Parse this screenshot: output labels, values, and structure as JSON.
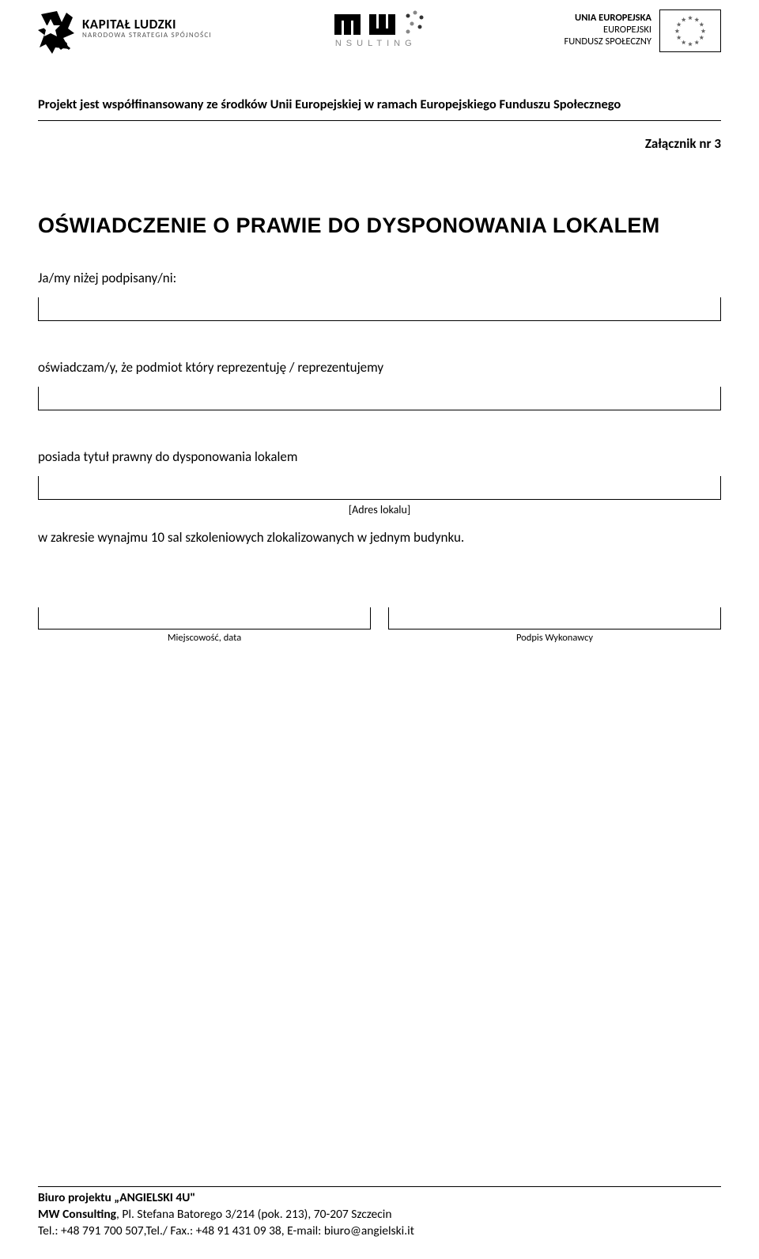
{
  "logos": {
    "kapital_title": "KAPITAŁ LUDZKI",
    "kapital_sub": "NARODOWA STRATEGIA SPÓJNOŚCI",
    "mw_letters": "mw",
    "mw_sub": "consulting",
    "eu_line1": "UNIA EUROPEJSKA",
    "eu_line2": "EUROPEJSKI",
    "eu_line3": "FUNDUSZ SPOŁECZNY",
    "eu_star_color": "#666666",
    "eu_flag_border": "#000000",
    "kapital_mark_bg": "#000000",
    "kapital_mark_star": "#ffffff"
  },
  "funding_line": "Projekt jest współfinansowany ze środków Unii Europejskiej w ramach Europejskiego Funduszu Społecznego",
  "attachment": "Załącznik nr 3",
  "title": "OŚWIADCZENIE O PRAWIE DO DYSPONOWANIA LOKALEM",
  "para1": "Ja/my niżej podpisany/ni:",
  "para2": "oświadczam/y, że podmiot który reprezentuję / reprezentujemy",
  "para3": "posiada tytuł prawny do dysponowania lokalem",
  "address_caption": "[Adres lokalu]",
  "scope": "w zakresie wynajmu 10 sal szkoleniowych zlokalizowanych w jednym budynku.",
  "sig_left": "Miejscowość, data",
  "sig_right": "Podpis Wykonawcy",
  "footer": {
    "l1_a": "Biuro projektu „ANGIELSKI 4U\"",
    "l2_strong": "MW Consulting",
    "l2_rest": ", Pl. Stefana Batorego 3/214 (pok. 213), 70-207 Szczecin",
    "l3": "Tel.: +48 791 700 507,Tel./ Fax.: +48 91 431 09 38, E-mail: biuro@angielski.it"
  },
  "colors": {
    "text": "#000000",
    "background": "#ffffff",
    "subtext": "#555555"
  }
}
